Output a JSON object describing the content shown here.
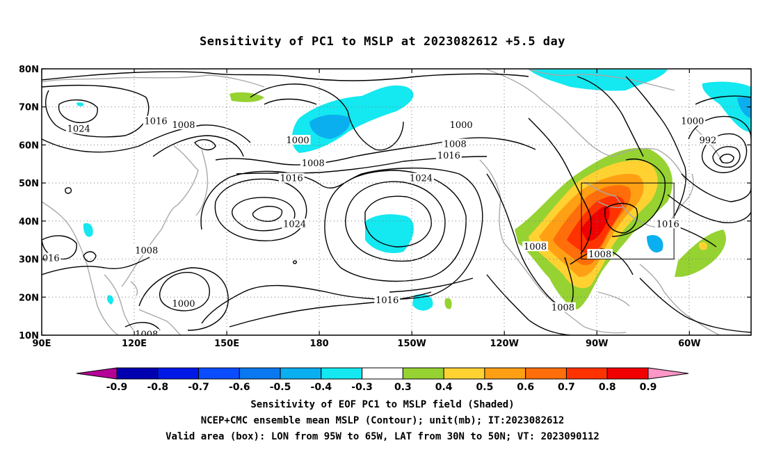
{
  "title": "Sensitivity of PC1 to MSLP at 2023082612 +5.5 day",
  "axes": {
    "lat_labels": [
      "80N",
      "70N",
      "60N",
      "50N",
      "40N",
      "30N",
      "20N",
      "10N"
    ],
    "lon_labels": [
      "90E",
      "120E",
      "150E",
      "180",
      "150W",
      "120W",
      "90W",
      "60W"
    ]
  },
  "contour_labels": [
    {
      "text": "1024",
      "lon": 102,
      "lat": 64
    },
    {
      "text": "1016",
      "lon": 127,
      "lat": 66
    },
    {
      "text": "1008",
      "lon": 136,
      "lat": 65
    },
    {
      "text": "1000",
      "lon": 173,
      "lat": 61
    },
    {
      "text": "1008",
      "lon": 178,
      "lat": 55
    },
    {
      "text": "1016",
      "lon": 171,
      "lat": 51
    },
    {
      "text": "1024",
      "lon": 172,
      "lat": 39
    },
    {
      "text": "1000",
      "lon": -134,
      "lat": 65
    },
    {
      "text": "1008",
      "lon": -136,
      "lat": 60
    },
    {
      "text": "1016",
      "lon": -138,
      "lat": 57
    },
    {
      "text": "1024",
      "lon": -147,
      "lat": 51
    },
    {
      "text": "1008",
      "lon": 124,
      "lat": 32
    },
    {
      "text": "016",
      "lon": 93,
      "lat": 30
    },
    {
      "text": "1000",
      "lon": 136,
      "lat": 18
    },
    {
      "text": "1008",
      "lon": 124,
      "lat": 10
    },
    {
      "text": "1016",
      "lon": -158,
      "lat": 19
    },
    {
      "text": "1008",
      "lon": -110,
      "lat": 33
    },
    {
      "text": "1008",
      "lon": -89,
      "lat": 31
    },
    {
      "text": "1016",
      "lon": -67,
      "lat": 39
    },
    {
      "text": "1008",
      "lon": -101,
      "lat": 17
    },
    {
      "text": "1000",
      "lon": -59,
      "lat": 66
    },
    {
      "text": "992",
      "lon": -54,
      "lat": 61
    }
  ],
  "valid_box": {
    "lon_min": -95,
    "lon_max": -65,
    "lat_min": 30,
    "lat_max": 50
  },
  "colorbar": {
    "labels": [
      "-0.9",
      "-0.8",
      "-0.7",
      "-0.6",
      "-0.5",
      "-0.4",
      "-0.3",
      "0.3",
      "0.4",
      "0.5",
      "0.6",
      "0.7",
      "0.8",
      "0.9"
    ],
    "colors": [
      "#0000b0",
      "#0018e6",
      "#0a4cff",
      "#0a78f0",
      "#0aaff0",
      "#14e8f0",
      "#ffffff",
      "#96d232",
      "#ffd232",
      "#ffa014",
      "#ff6e0a",
      "#ff3200",
      "#f00000"
    ],
    "low_end_color": "#b40096",
    "high_end_color": "#ff96c8"
  },
  "captions": [
    "Sensitivity of EOF PC1 to MSLP field (Shaded)",
    "NCEP+CMC ensemble mean MSLP (Contour); unit(mb); IT:2023082612",
    "Valid area (box): LON from 95W to 65W, LAT from 30N to 50N; VT: 2023090112"
  ]
}
